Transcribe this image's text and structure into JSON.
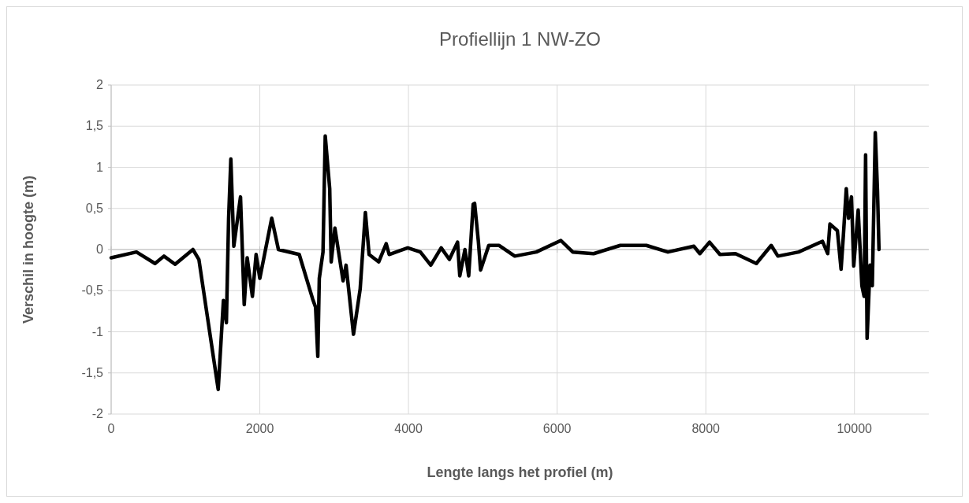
{
  "chart_data": {
    "type": "line",
    "title": "Profiellijn 1 NW-ZO",
    "xlabel": "Lengte langs het profiel (m)",
    "ylabel": "Verschil in hoogte (m)",
    "series": [
      {
        "color": "#000000",
        "x": [
          0,
          340,
          590,
          710,
          860,
          1100,
          1180,
          1440,
          1510,
          1550,
          1580,
          1610,
          1650,
          1740,
          1790,
          1830,
          1900,
          1950,
          2000,
          2160,
          2250,
          2530,
          2710,
          2750,
          2780,
          2800,
          2850,
          2880,
          2940,
          2960,
          3010,
          3120,
          3160,
          3260,
          3350,
          3420,
          3470,
          3600,
          3700,
          3740,
          3990,
          4160,
          4300,
          4440,
          4550,
          4660,
          4690,
          4760,
          4810,
          4870,
          4890,
          4940,
          4970,
          5080,
          5220,
          5430,
          5720,
          6050,
          6210,
          6490,
          6850,
          7200,
          7490,
          7840,
          7920,
          8050,
          8190,
          8400,
          8680,
          8880,
          8970,
          9250,
          9570,
          9640,
          9670,
          9770,
          9820,
          9850,
          9890,
          9920,
          9960,
          9990,
          10050,
          10100,
          10130,
          10150,
          10170,
          10210,
          10240,
          10280,
          10310,
          10330
        ],
        "values": [
          -0.1,
          -0.03,
          -0.17,
          -0.08,
          -0.18,
          0,
          -0.12,
          -1.7,
          -0.62,
          -0.89,
          0.38,
          1.1,
          0.04,
          0.64,
          -0.67,
          -0.1,
          -0.57,
          -0.06,
          -0.35,
          0.38,
          0,
          -0.06,
          -0.6,
          -0.7,
          -1.3,
          -0.35,
          -0.03,
          1.38,
          0.74,
          -0.15,
          0.26,
          -0.38,
          -0.19,
          -1.03,
          -0.48,
          0.45,
          -0.06,
          -0.15,
          0.07,
          -0.06,
          0.02,
          -0.03,
          -0.19,
          0.02,
          -0.12,
          0.09,
          -0.32,
          0,
          -0.32,
          0.55,
          0.56,
          0.1,
          -0.25,
          0.05,
          0.05,
          -0.08,
          -0.03,
          0.11,
          -0.03,
          -0.05,
          0.05,
          0.05,
          -0.03,
          0.04,
          -0.05,
          0.09,
          -0.06,
          -0.05,
          -0.17,
          0.05,
          -0.08,
          -0.03,
          0.1,
          -0.05,
          0.31,
          0.23,
          -0.24,
          0.16,
          0.74,
          0.38,
          0.64,
          -0.2,
          0.48,
          -0.44,
          -0.57,
          1.15,
          -1.08,
          -0.19,
          -0.44,
          1.42,
          0.71,
          0
        ]
      }
    ],
    "xlim": [
      0,
      11000
    ],
    "xticks": [
      0,
      2000,
      4000,
      6000,
      8000,
      10000
    ],
    "ylim": [
      -2,
      2
    ],
    "yticks": [
      {
        "value": -2,
        "label": "-2"
      },
      {
        "value": -1.5,
        "label": "-1,5"
      },
      {
        "value": -1,
        "label": "-1"
      },
      {
        "value": -0.5,
        "label": "-0,5"
      },
      {
        "value": 0,
        "label": "0"
      },
      {
        "value": 0.5,
        "label": "0,5"
      },
      {
        "value": 1,
        "label": "1"
      },
      {
        "value": 1.5,
        "label": "1,5"
      },
      {
        "value": 2,
        "label": "2"
      }
    ],
    "grid": true,
    "marker": "none",
    "line_style": "solid"
  }
}
